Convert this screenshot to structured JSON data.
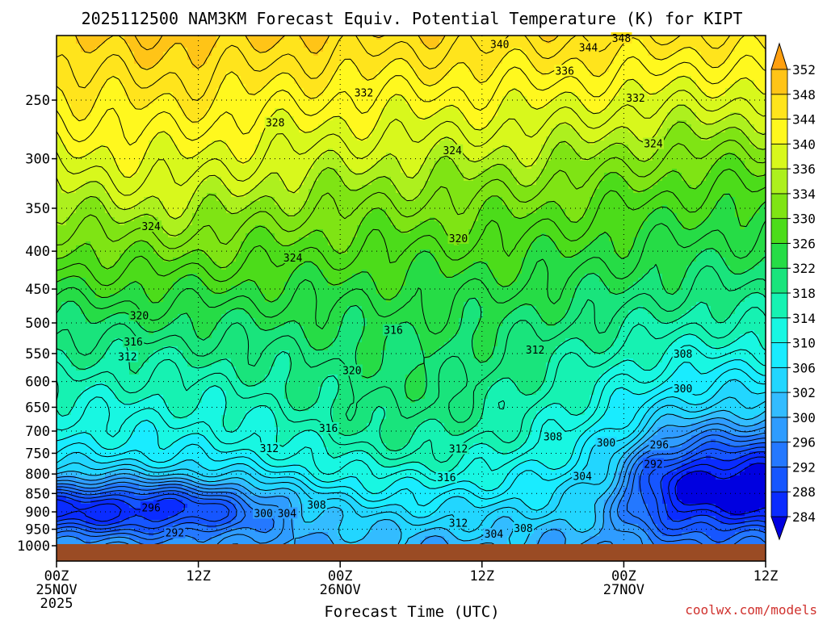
{
  "chart_data": {
    "type": "heatmap",
    "title": "2025112500 NAM3KM Forecast Equiv. Potential Temperature (K) for KIPT",
    "xlabel": "Forecast Time (UTC)",
    "ylabel": "",
    "credit": "coolwx.com/models",
    "x_ticks": [
      {
        "hour": 0,
        "lines": [
          "00Z",
          "25NOV",
          "2025"
        ]
      },
      {
        "hour": 12,
        "lines": [
          "12Z"
        ]
      },
      {
        "hour": 24,
        "lines": [
          "00Z",
          "26NOV"
        ]
      },
      {
        "hour": 36,
        "lines": [
          "12Z"
        ]
      },
      {
        "hour": 48,
        "lines": [
          "00Z",
          "27NOV"
        ]
      },
      {
        "hour": 60,
        "lines": [
          "12Z"
        ]
      }
    ],
    "xlim": [
      0,
      60
    ],
    "y_ticks": [
      250,
      300,
      350,
      400,
      450,
      500,
      550,
      600,
      650,
      700,
      750,
      800,
      850,
      900,
      950,
      1000
    ],
    "ylim_hPa": [
      200,
      1000
    ],
    "y_scale": "log-pressure",
    "grid": true,
    "colorbar": {
      "levels": [
        284,
        288,
        292,
        296,
        300,
        302,
        306,
        310,
        314,
        318,
        322,
        326,
        330,
        334,
        336,
        340,
        344,
        348,
        352
      ],
      "colors": [
        "#0000e0",
        "#0a2cff",
        "#1656ff",
        "#2478ff",
        "#2f9cff",
        "#33bcff",
        "#22d6ff",
        "#19ecff",
        "#18f7e2",
        "#16f2b2",
        "#19e47c",
        "#26dc46",
        "#4cdc1a",
        "#7fe414",
        "#adf01e",
        "#d8f81c",
        "#fff81e",
        "#ffe41c",
        "#ffc417",
        "#ffa010"
      ]
    },
    "contour_labels": [
      {
        "text": "340",
        "hour": 37.5,
        "p": 210
      },
      {
        "text": "348",
        "hour": 47.8,
        "p": 206
      },
      {
        "text": "344",
        "hour": 45.0,
        "p": 212
      },
      {
        "text": "336",
        "hour": 43.0,
        "p": 228
      },
      {
        "text": "332",
        "hour": 26.0,
        "p": 244
      },
      {
        "text": "332",
        "hour": 49.0,
        "p": 248
      },
      {
        "text": "328",
        "hour": 18.5,
        "p": 268
      },
      {
        "text": "324",
        "hour": 33.5,
        "p": 292
      },
      {
        "text": "324",
        "hour": 50.5,
        "p": 286
      },
      {
        "text": "324",
        "hour": 8.0,
        "p": 370
      },
      {
        "text": "324",
        "hour": 20.0,
        "p": 408
      },
      {
        "text": "320",
        "hour": 34.0,
        "p": 384
      },
      {
        "text": "320",
        "hour": 7.0,
        "p": 488
      },
      {
        "text": "316",
        "hour": 6.5,
        "p": 530
      },
      {
        "text": "316",
        "hour": 28.5,
        "p": 511
      },
      {
        "text": "312",
        "hour": 6.0,
        "p": 555
      },
      {
        "text": "320",
        "hour": 25.0,
        "p": 579
      },
      {
        "text": "312",
        "hour": 40.5,
        "p": 543
      },
      {
        "text": "308",
        "hour": 53.0,
        "p": 550
      },
      {
        "text": "300",
        "hour": 53.0,
        "p": 613
      },
      {
        "text": "316",
        "hour": 23.0,
        "p": 693
      },
      {
        "text": "312",
        "hour": 18.0,
        "p": 738
      },
      {
        "text": "312",
        "hour": 34.0,
        "p": 739
      },
      {
        "text": "308",
        "hour": 42.0,
        "p": 712
      },
      {
        "text": "300",
        "hour": 46.5,
        "p": 725
      },
      {
        "text": "296",
        "hour": 51.0,
        "p": 730
      },
      {
        "text": "292",
        "hour": 50.5,
        "p": 775
      },
      {
        "text": "304",
        "hour": 44.5,
        "p": 805
      },
      {
        "text": "316",
        "hour": 33.0,
        "p": 808
      },
      {
        "text": "296",
        "hour": 8.0,
        "p": 887
      },
      {
        "text": "308",
        "hour": 22.0,
        "p": 880
      },
      {
        "text": "300",
        "hour": 17.5,
        "p": 903
      },
      {
        "text": "304",
        "hour": 19.5,
        "p": 903
      },
      {
        "text": "312",
        "hour": 34.0,
        "p": 931
      },
      {
        "text": "308",
        "hour": 39.5,
        "p": 946
      },
      {
        "text": "304",
        "hour": 37.0,
        "p": 963
      },
      {
        "text": "292",
        "hour": 10.0,
        "p": 960
      }
    ]
  }
}
